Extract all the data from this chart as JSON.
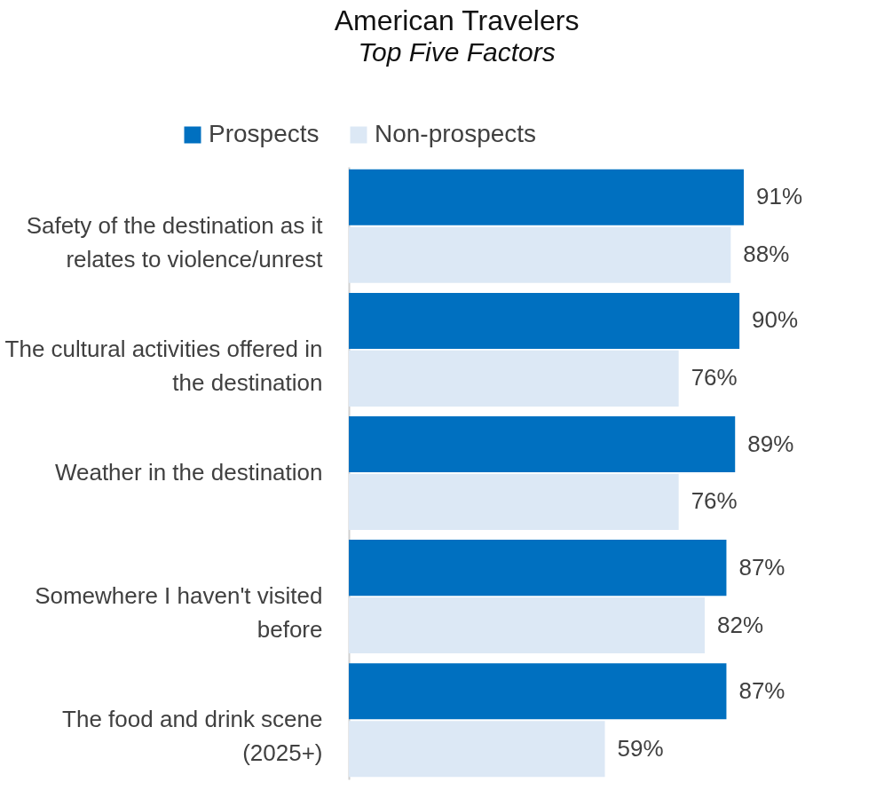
{
  "chart_data": {
    "type": "bar",
    "orientation": "horizontal",
    "title": "American Travelers",
    "subtitle": "Top Five Factors",
    "categories": [
      "Safety of the destination as it relates to violence/unrest",
      "The cultural activities offered in the destination",
      "Weather in the destination",
      "Somewhere I haven't visited before",
      "The food and drink scene (2025+)"
    ],
    "series": [
      {
        "name": "Prospects",
        "color": "#0070c0",
        "values": [
          91,
          90,
          89,
          87,
          87
        ],
        "value_labels": [
          "91%",
          "90%",
          "89%",
          "87%",
          "87%"
        ]
      },
      {
        "name": "Non-prospects",
        "color": "#dce8f5",
        "values": [
          88,
          76,
          76,
          82,
          59
        ],
        "value_labels": [
          "88%",
          "76%",
          "76%",
          "82%",
          "59%"
        ]
      }
    ],
    "legend": "top"
  }
}
